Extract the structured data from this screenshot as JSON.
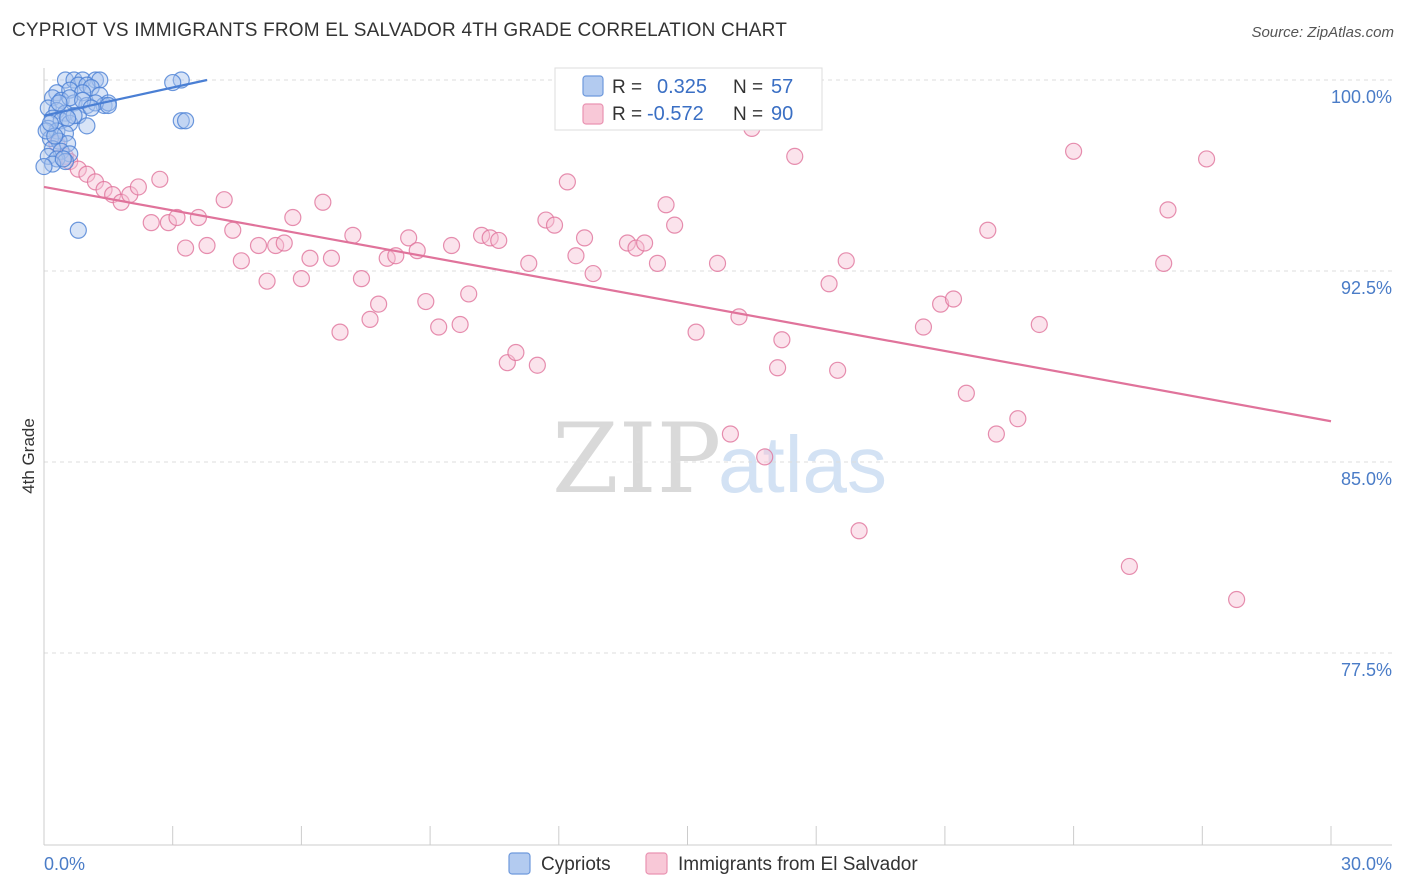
{
  "header": {
    "title": "CYPRIOT VS IMMIGRANTS FROM EL SALVADOR 4TH GRADE CORRELATION CHART",
    "source": "Source: ZipAtlas.com"
  },
  "legend": {
    "r_label": "R =",
    "n_label": "N =",
    "series": [
      {
        "r": "0.325",
        "n": "57"
      },
      {
        "r": "-0.572",
        "n": "90"
      }
    ]
  },
  "watermark": {
    "zip": "ZIP",
    "atlas": "atlas"
  },
  "bottom_legend": [
    "Cypriots",
    "Immigrants from El Salvador"
  ],
  "chart_data": {
    "type": "scatter",
    "title": "CYPRIOT VS IMMIGRANTS FROM EL SALVADOR 4TH GRADE CORRELATION CHART",
    "xlabel": "",
    "ylabel": "4th Grade",
    "xlim": [
      0,
      30
    ],
    "ylim": [
      70,
      100.5
    ],
    "x_tick_labels": [
      "0.0%",
      "30.0%"
    ],
    "y_ticks": [
      100,
      92.5,
      85,
      77.5
    ],
    "y_tick_labels": [
      "100.0%",
      "92.5%",
      "85.0%",
      "77.5%"
    ],
    "colors": {
      "cypriots": "#4a7fd4",
      "cypriots_fill": "#a9c4ee",
      "elsalvador": "#e0739b",
      "elsalvador_fill": "#f6c2d4",
      "tick": "#4a7cc7"
    },
    "series": [
      {
        "name": "Cypriots",
        "trend": {
          "x": [
            0.0,
            3.8
          ],
          "y": [
            98.6,
            100.0
          ]
        },
        "points": [
          [
            0.5,
            100
          ],
          [
            0.7,
            100
          ],
          [
            0.9,
            100
          ],
          [
            1.2,
            100
          ],
          [
            1.3,
            100
          ],
          [
            3.2,
            100
          ],
          [
            0.8,
            99.8
          ],
          [
            1.0,
            99.8
          ],
          [
            1.1,
            99.7
          ],
          [
            3.0,
            99.9
          ],
          [
            0.3,
            99.5
          ],
          [
            0.6,
            99.6
          ],
          [
            0.9,
            99.5
          ],
          [
            1.3,
            99.4
          ],
          [
            0.2,
            99.3
          ],
          [
            0.4,
            99.2
          ],
          [
            0.7,
            99.1
          ],
          [
            1.0,
            99.0
          ],
          [
            1.4,
            99.0
          ],
          [
            1.5,
            99.1
          ],
          [
            0.1,
            98.9
          ],
          [
            0.3,
            98.8
          ],
          [
            0.5,
            98.7
          ],
          [
            0.8,
            98.6
          ],
          [
            0.2,
            98.5
          ],
          [
            0.4,
            98.4
          ],
          [
            0.6,
            98.3
          ],
          [
            1.0,
            98.2
          ],
          [
            0.1,
            98.1
          ],
          [
            0.3,
            98.0
          ],
          [
            0.5,
            97.9
          ],
          [
            0.15,
            97.7
          ],
          [
            0.35,
            97.6
          ],
          [
            0.55,
            97.5
          ],
          [
            0.2,
            97.3
          ],
          [
            0.4,
            97.2
          ],
          [
            0.6,
            97.1
          ],
          [
            0.1,
            97.0
          ],
          [
            0.3,
            96.9
          ],
          [
            0.5,
            96.8
          ],
          [
            0.2,
            96.7
          ],
          [
            0.0,
            96.6
          ],
          [
            0.45,
            96.9
          ],
          [
            3.2,
            98.4
          ],
          [
            3.3,
            98.4
          ],
          [
            0.8,
            94.1
          ],
          [
            1.2,
            99.1
          ],
          [
            1.5,
            99.0
          ],
          [
            0.6,
            99.3
          ],
          [
            0.9,
            99.2
          ],
          [
            0.05,
            98.0
          ],
          [
            0.25,
            97.8
          ],
          [
            0.7,
            98.6
          ],
          [
            1.1,
            98.9
          ],
          [
            0.35,
            99.1
          ],
          [
            0.15,
            98.3
          ],
          [
            0.55,
            98.5
          ]
        ]
      },
      {
        "name": "Immigrants from El Salvador",
        "trend": {
          "x": [
            0.0,
            30.0
          ],
          "y": [
            95.8,
            86.6
          ]
        },
        "points": [
          [
            0.3,
            97.5
          ],
          [
            0.5,
            97.0
          ],
          [
            0.6,
            96.8
          ],
          [
            0.8,
            96.5
          ],
          [
            1.0,
            96.3
          ],
          [
            1.2,
            96.0
          ],
          [
            1.4,
            95.7
          ],
          [
            1.6,
            95.5
          ],
          [
            1.8,
            95.2
          ],
          [
            2.0,
            95.5
          ],
          [
            2.2,
            95.8
          ],
          [
            2.5,
            94.4
          ],
          [
            2.7,
            96.1
          ],
          [
            2.9,
            94.4
          ],
          [
            3.1,
            94.6
          ],
          [
            3.3,
            93.4
          ],
          [
            3.6,
            94.6
          ],
          [
            3.8,
            93.5
          ],
          [
            4.2,
            95.3
          ],
          [
            4.4,
            94.1
          ],
          [
            4.6,
            92.9
          ],
          [
            5.0,
            93.5
          ],
          [
            5.2,
            92.1
          ],
          [
            5.4,
            93.5
          ],
          [
            5.6,
            93.6
          ],
          [
            5.8,
            94.6
          ],
          [
            6.0,
            92.2
          ],
          [
            6.2,
            93.0
          ],
          [
            6.5,
            95.2
          ],
          [
            6.7,
            93.0
          ],
          [
            6.9,
            90.1
          ],
          [
            7.2,
            93.9
          ],
          [
            7.4,
            92.2
          ],
          [
            7.6,
            90.6
          ],
          [
            7.8,
            91.2
          ],
          [
            8.0,
            93.0
          ],
          [
            8.2,
            93.1
          ],
          [
            8.5,
            93.8
          ],
          [
            8.7,
            93.3
          ],
          [
            8.9,
            91.3
          ],
          [
            9.2,
            90.3
          ],
          [
            9.5,
            93.5
          ],
          [
            9.7,
            90.4
          ],
          [
            9.9,
            91.6
          ],
          [
            10.2,
            93.9
          ],
          [
            10.4,
            93.8
          ],
          [
            10.6,
            93.7
          ],
          [
            10.8,
            88.9
          ],
          [
            11.0,
            89.3
          ],
          [
            11.3,
            92.8
          ],
          [
            11.5,
            88.8
          ],
          [
            11.7,
            94.5
          ],
          [
            11.9,
            94.3
          ],
          [
            12.2,
            96.0
          ],
          [
            12.4,
            93.1
          ],
          [
            12.6,
            93.8
          ],
          [
            12.8,
            92.4
          ],
          [
            13.6,
            93.6
          ],
          [
            13.8,
            93.4
          ],
          [
            14.0,
            93.6
          ],
          [
            14.3,
            92.8
          ],
          [
            14.5,
            95.1
          ],
          [
            14.7,
            94.3
          ],
          [
            15.2,
            90.1
          ],
          [
            15.7,
            92.8
          ],
          [
            16.0,
            86.1
          ],
          [
            16.2,
            90.7
          ],
          [
            16.5,
            98.1
          ],
          [
            16.8,
            85.2
          ],
          [
            17.1,
            88.7
          ],
          [
            17.2,
            89.8
          ],
          [
            17.5,
            97.0
          ],
          [
            18.3,
            92.0
          ],
          [
            18.5,
            88.6
          ],
          [
            18.7,
            92.9
          ],
          [
            19.0,
            82.3
          ],
          [
            20.5,
            90.3
          ],
          [
            20.9,
            91.2
          ],
          [
            21.2,
            91.4
          ],
          [
            21.5,
            87.7
          ],
          [
            22.0,
            94.1
          ],
          [
            22.2,
            86.1
          ],
          [
            22.7,
            86.7
          ],
          [
            23.2,
            90.4
          ],
          [
            24.0,
            97.2
          ],
          [
            25.3,
            80.9
          ],
          [
            26.1,
            92.8
          ],
          [
            26.2,
            94.9
          ],
          [
            27.1,
            96.9
          ],
          [
            27.8,
            79.6
          ]
        ]
      }
    ]
  }
}
